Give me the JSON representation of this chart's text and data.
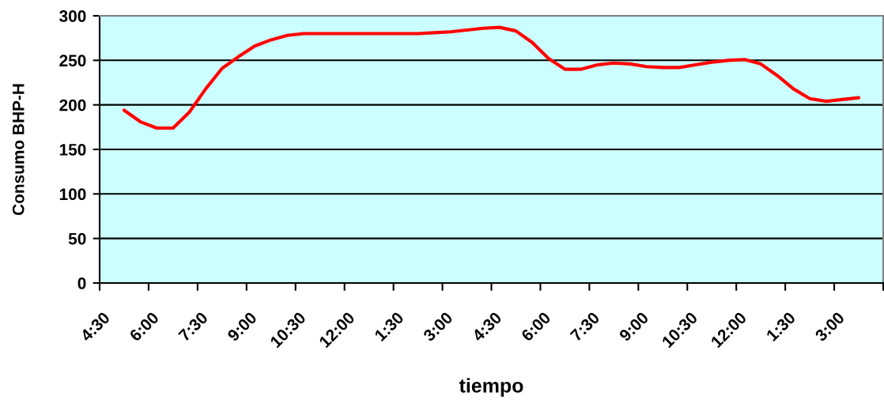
{
  "chart_data": {
    "type": "line",
    "xlabel": "tiempo",
    "ylabel": "Consumo BHP-H",
    "categories": [
      "4:30",
      null,
      null,
      "6:00",
      null,
      null,
      "7:30",
      null,
      null,
      "9:00",
      null,
      null,
      "10:30",
      null,
      null,
      "12:00",
      null,
      null,
      "1:30",
      null,
      null,
      "3:00",
      null,
      null,
      "4:30",
      null,
      null,
      "6:00",
      null,
      null,
      "7:30",
      null,
      null,
      "9:00",
      null,
      null,
      "10:30",
      null,
      null,
      "12:00",
      null,
      null,
      "1:30",
      null,
      null,
      "3:00",
      null,
      null
    ],
    "series": [
      {
        "color": "#ff0000",
        "values": [
          null,
          194,
          181,
          174,
          174,
          192,
          218,
          241,
          254,
          266,
          273,
          278,
          280,
          280,
          280,
          280,
          280,
          280,
          280,
          280,
          281,
          282,
          284,
          286,
          287,
          283,
          270,
          252,
          240,
          240,
          245,
          247,
          246,
          243,
          242,
          242,
          245,
          248,
          250,
          251,
          246,
          233,
          218,
          207,
          204,
          206,
          208,
          null
        ]
      }
    ],
    "ylim": [
      0,
      300
    ],
    "yticks": [
      0,
      50,
      100,
      150,
      200,
      250,
      300
    ],
    "grid": "y"
  }
}
